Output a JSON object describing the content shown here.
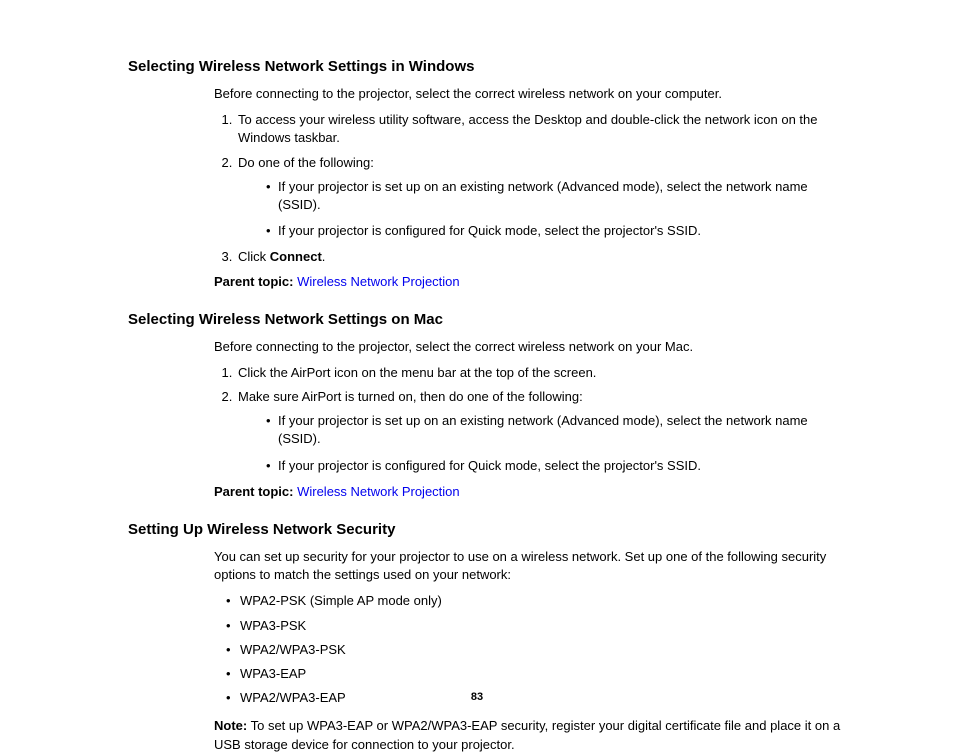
{
  "page_number": "83",
  "section1": {
    "heading": "Selecting Wireless Network Settings in Windows",
    "intro": "Before connecting to the projector, select the correct wireless network on your computer.",
    "steps": [
      "To access your wireless utility software, access the Desktop and double-click the network icon on the Windows taskbar.",
      "Do one of the following:",
      "Click "
    ],
    "step3_bold": "Connect",
    "step3_suffix": ".",
    "sub2": [
      "If your projector is set up on an existing network (Advanced mode), select the network name (SSID).",
      "If your projector is configured for Quick mode, select the projector's SSID."
    ],
    "parent_label": "Parent topic:",
    "parent_link": "Wireless Network Projection"
  },
  "section2": {
    "heading": "Selecting Wireless Network Settings on Mac",
    "intro": "Before connecting to the projector, select the correct wireless network on your Mac.",
    "steps": [
      "Click the AirPort icon on the menu bar at the top of the screen.",
      "Make sure AirPort is turned on, then do one of the following:"
    ],
    "sub2": [
      "If your projector is set up on an existing network (Advanced mode), select the network name (SSID).",
      "If your projector is configured for Quick mode, select the projector's SSID."
    ],
    "parent_label": "Parent topic:",
    "parent_link": "Wireless Network Projection"
  },
  "section3": {
    "heading": "Setting Up Wireless Network Security",
    "intro": "You can set up security for your projector to use on a wireless network. Set up one of the following security options to match the settings used on your network:",
    "options": [
      "WPA2-PSK (Simple AP mode only)",
      "WPA3-PSK",
      "WPA2/WPA3-PSK",
      "WPA3-EAP",
      "WPA2/WPA3-EAP"
    ],
    "note_label": "Note:",
    "note_text": " To set up WPA3-EAP or WPA2/WPA3-EAP security, register your digital certificate file and place it on a USB storage device for connection to your projector."
  }
}
